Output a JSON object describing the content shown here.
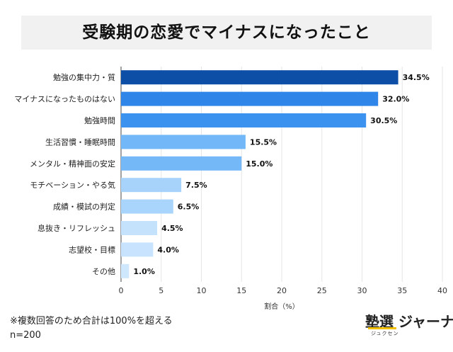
{
  "title": "受験期の恋愛でマイナスになったこと",
  "footnote": {
    "note": "※複数回答のため合計は100%を超える",
    "sample": "n=200"
  },
  "logo": {
    "main": "塾選 ジャーナル",
    "sub": "ジュクセン"
  },
  "chart_data": {
    "type": "bar",
    "orientation": "horizontal",
    "categories": [
      "勉強の集中力・質",
      "マイナスになったものはない",
      "勉強時間",
      "生活習慣・睡眠時間",
      "メンタル・精神面の安定",
      "モチベーション・やる気",
      "成績・模試の判定",
      "息抜き・リフレッシュ",
      "志望校・目標",
      "その他"
    ],
    "values": [
      34.5,
      32.0,
      30.5,
      15.5,
      15.0,
      7.5,
      6.5,
      4.5,
      4.0,
      1.0
    ],
    "value_labels": [
      "34.5%",
      "32.0%",
      "30.5%",
      "15.5%",
      "15.0%",
      "7.5%",
      "6.5%",
      "4.5%",
      "4.0%",
      "1.0%"
    ],
    "bar_colors": [
      "#0d4ea6",
      "#2f86e8",
      "#3b93ef",
      "#72b7f7",
      "#74b8f7",
      "#a7d3fb",
      "#a9d4fb",
      "#c5e2fd",
      "#c7e3fd",
      "#cfe7fd"
    ],
    "xlim": [
      0,
      40
    ],
    "xticks": [
      0,
      5,
      10,
      15,
      20,
      25,
      30,
      35,
      40
    ],
    "xlabel": "割合（%）",
    "ylabel": "",
    "grid": true
  }
}
